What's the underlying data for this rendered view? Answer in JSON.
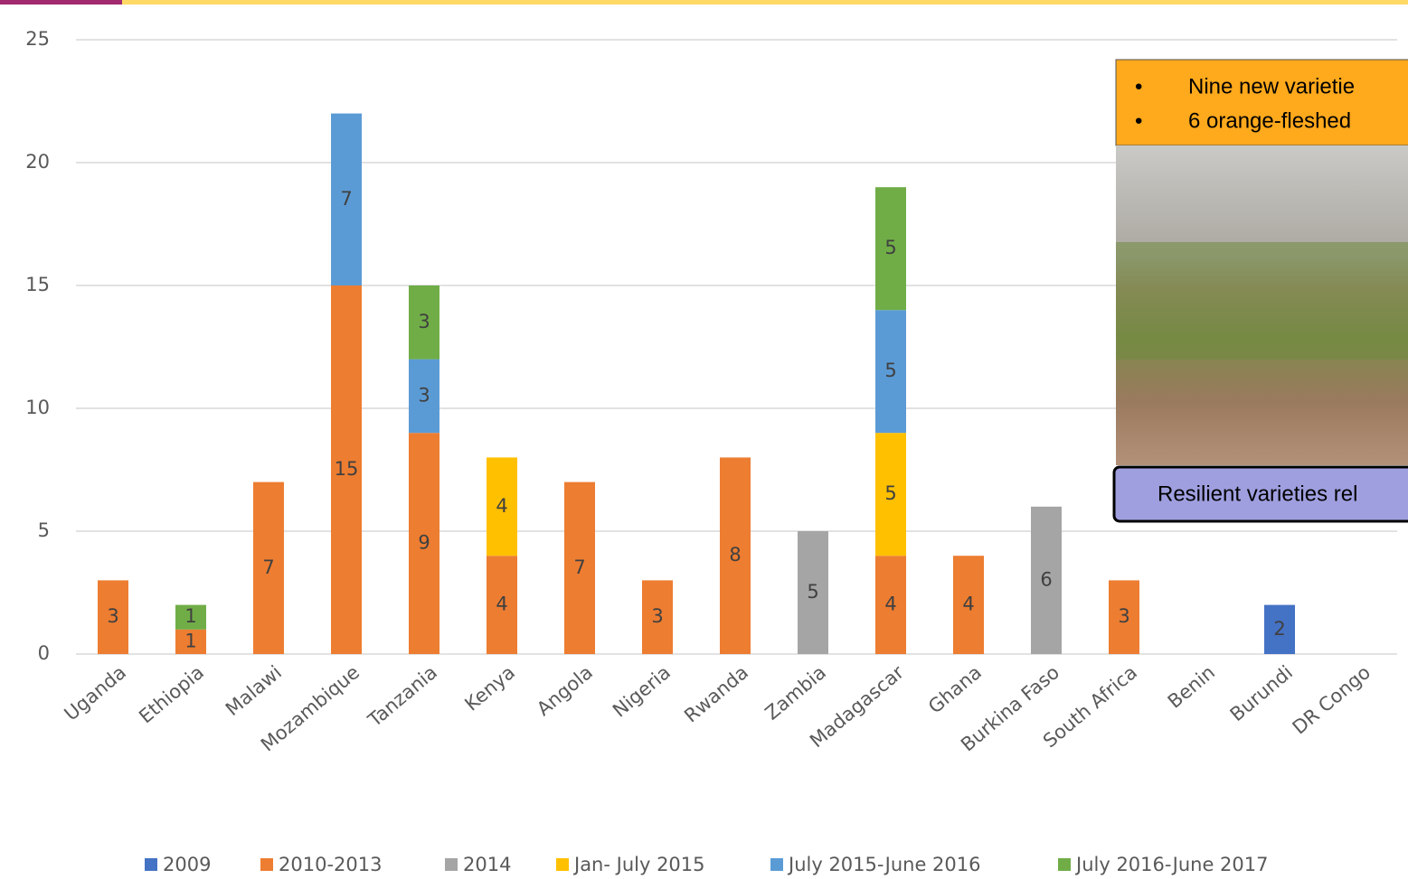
{
  "chart_data": {
    "type": "stacked_bar",
    "categories": [
      "Uganda",
      "Ethiopia",
      "Malawi",
      "Mozambique",
      "Tanzania",
      "Kenya",
      "Angola",
      "Nigeria",
      "Rwanda",
      "Zambia",
      "Madagascar",
      "Ghana",
      "Burkina Faso",
      "South Africa",
      "Benin",
      "Burundi",
      "DR Congo"
    ],
    "series": [
      {
        "name": "2009",
        "color": "#4472c4",
        "values": [
          null,
          null,
          null,
          null,
          null,
          null,
          null,
          null,
          null,
          null,
          null,
          null,
          null,
          null,
          null,
          2,
          null
        ]
      },
      {
        "name": "2010-2013",
        "color": "#ed7d31",
        "values": [
          3,
          1,
          7,
          15,
          9,
          4,
          7,
          3,
          8,
          null,
          4,
          4,
          null,
          3,
          null,
          null,
          null
        ]
      },
      {
        "name": "2014",
        "color": "#a5a5a5",
        "values": [
          null,
          null,
          null,
          null,
          null,
          null,
          null,
          null,
          null,
          5,
          null,
          null,
          6,
          null,
          null,
          null,
          null
        ]
      },
      {
        "name": "Jan- July 2015",
        "color": "#ffc000",
        "values": [
          null,
          null,
          null,
          null,
          null,
          4,
          null,
          null,
          null,
          null,
          5,
          null,
          null,
          null,
          null,
          null,
          null
        ]
      },
      {
        "name": "July 2015-June 2016",
        "color": "#5b9bd5",
        "values": [
          null,
          null,
          null,
          7,
          3,
          null,
          null,
          null,
          null,
          null,
          5,
          null,
          null,
          null,
          null,
          null,
          null
        ]
      },
      {
        "name": "July 2016-June 2017",
        "color": "#70ad47",
        "values": [
          null,
          1,
          null,
          null,
          3,
          null,
          null,
          null,
          null,
          null,
          5,
          null,
          null,
          null,
          null,
          null,
          null
        ]
      }
    ],
    "ylim": [
      0,
      25
    ],
    "yticks": [
      0,
      5,
      10,
      15,
      20,
      25
    ],
    "grid": true,
    "legend": "bottom"
  },
  "overlay": {
    "bullets": [
      "Nine new varietie",
      "6 orange-fleshed"
    ],
    "caption": "Resilient varieties rel"
  }
}
